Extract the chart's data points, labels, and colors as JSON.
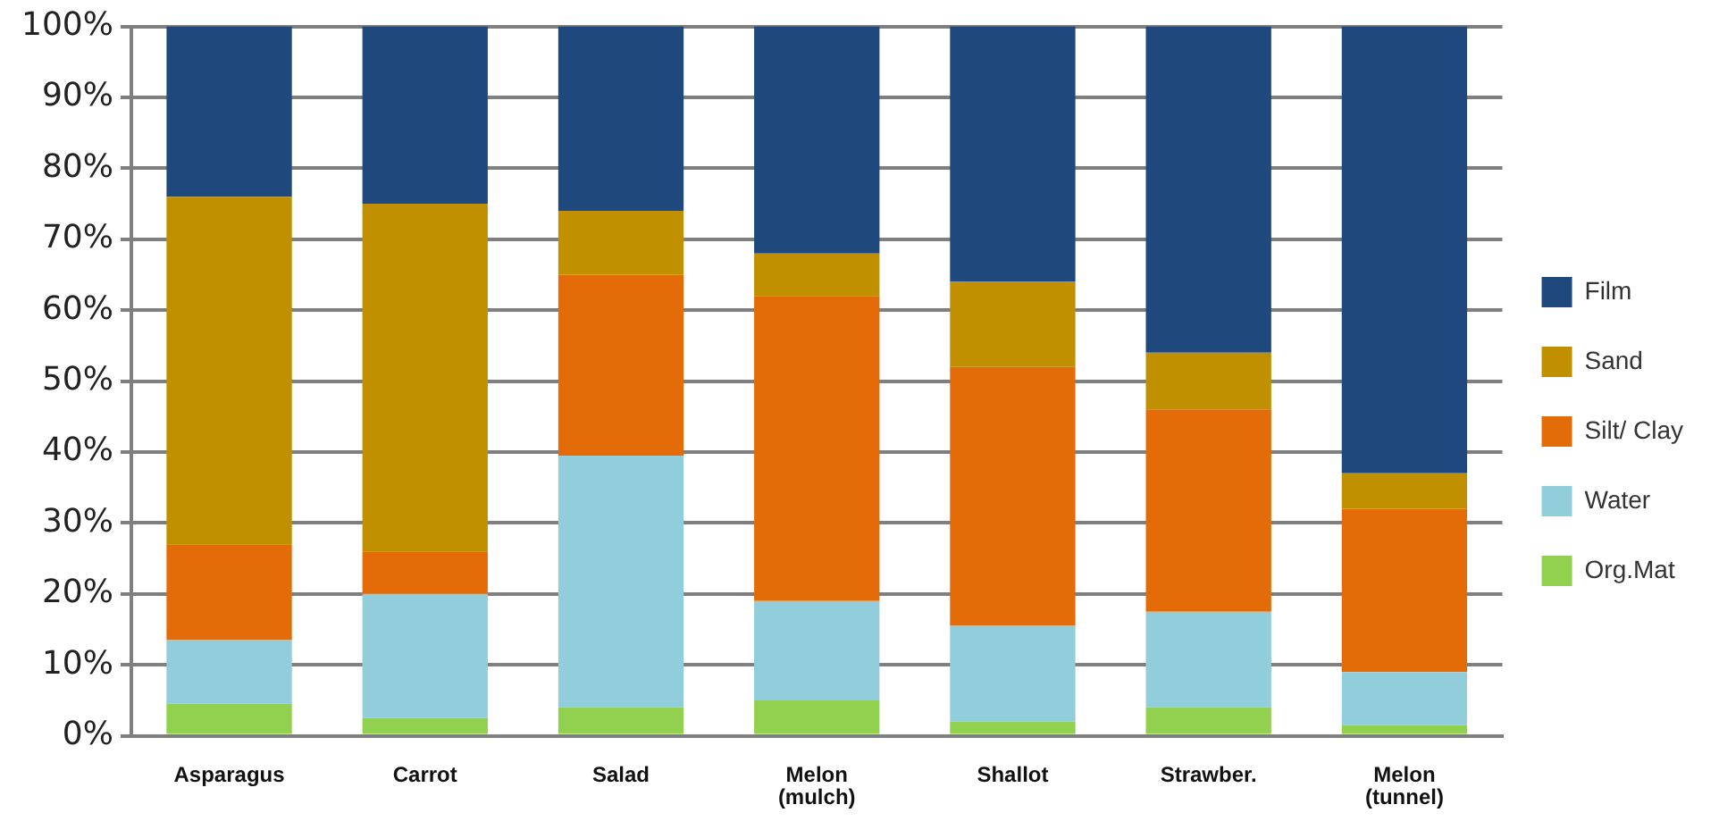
{
  "chart_data": {
    "type": "bar",
    "stacked": true,
    "legend": "right",
    "grid": "y",
    "categories": [
      "Asparagus",
      "Carrot",
      "Salad",
      "Melon (mulch)",
      "Shallot",
      "Strawber.",
      "Melon (tunnel)"
    ],
    "series": [
      {
        "name": "Org.Mat",
        "color": "#92d050",
        "values": [
          4.5,
          2.5,
          4,
          5,
          2,
          4,
          1.5
        ]
      },
      {
        "name": "Water",
        "color": "#92cddc",
        "values": [
          9,
          17.5,
          35.5,
          14,
          13.5,
          13.5,
          7.5
        ]
      },
      {
        "name": "Silt/ Clay",
        "color": "#e36c09",
        "values": [
          13.5,
          6,
          25.5,
          43,
          36.5,
          28.5,
          23
        ]
      },
      {
        "name": "Sand",
        "color": "#c09000",
        "values": [
          49,
          49,
          9,
          6,
          12,
          8,
          5
        ]
      },
      {
        "name": "Film",
        "color": "#1f497d",
        "values": [
          24,
          25,
          26,
          32,
          36,
          46,
          63
        ]
      }
    ],
    "ylim": [
      0,
      100
    ],
    "yticks": [
      {
        "value": 0,
        "label": "0%"
      },
      {
        "value": 10,
        "label": "10%"
      },
      {
        "value": 20,
        "label": "20%"
      },
      {
        "value": 30,
        "label": "30%"
      },
      {
        "value": 40,
        "label": "40%"
      },
      {
        "value": 50,
        "label": "50%"
      },
      {
        "value": 60,
        "label": "60%"
      },
      {
        "value": 70,
        "label": "70%"
      },
      {
        "value": 80,
        "label": "80%"
      },
      {
        "value": 90,
        "label": "90%"
      },
      {
        "value": 100,
        "label": "100%"
      }
    ]
  }
}
